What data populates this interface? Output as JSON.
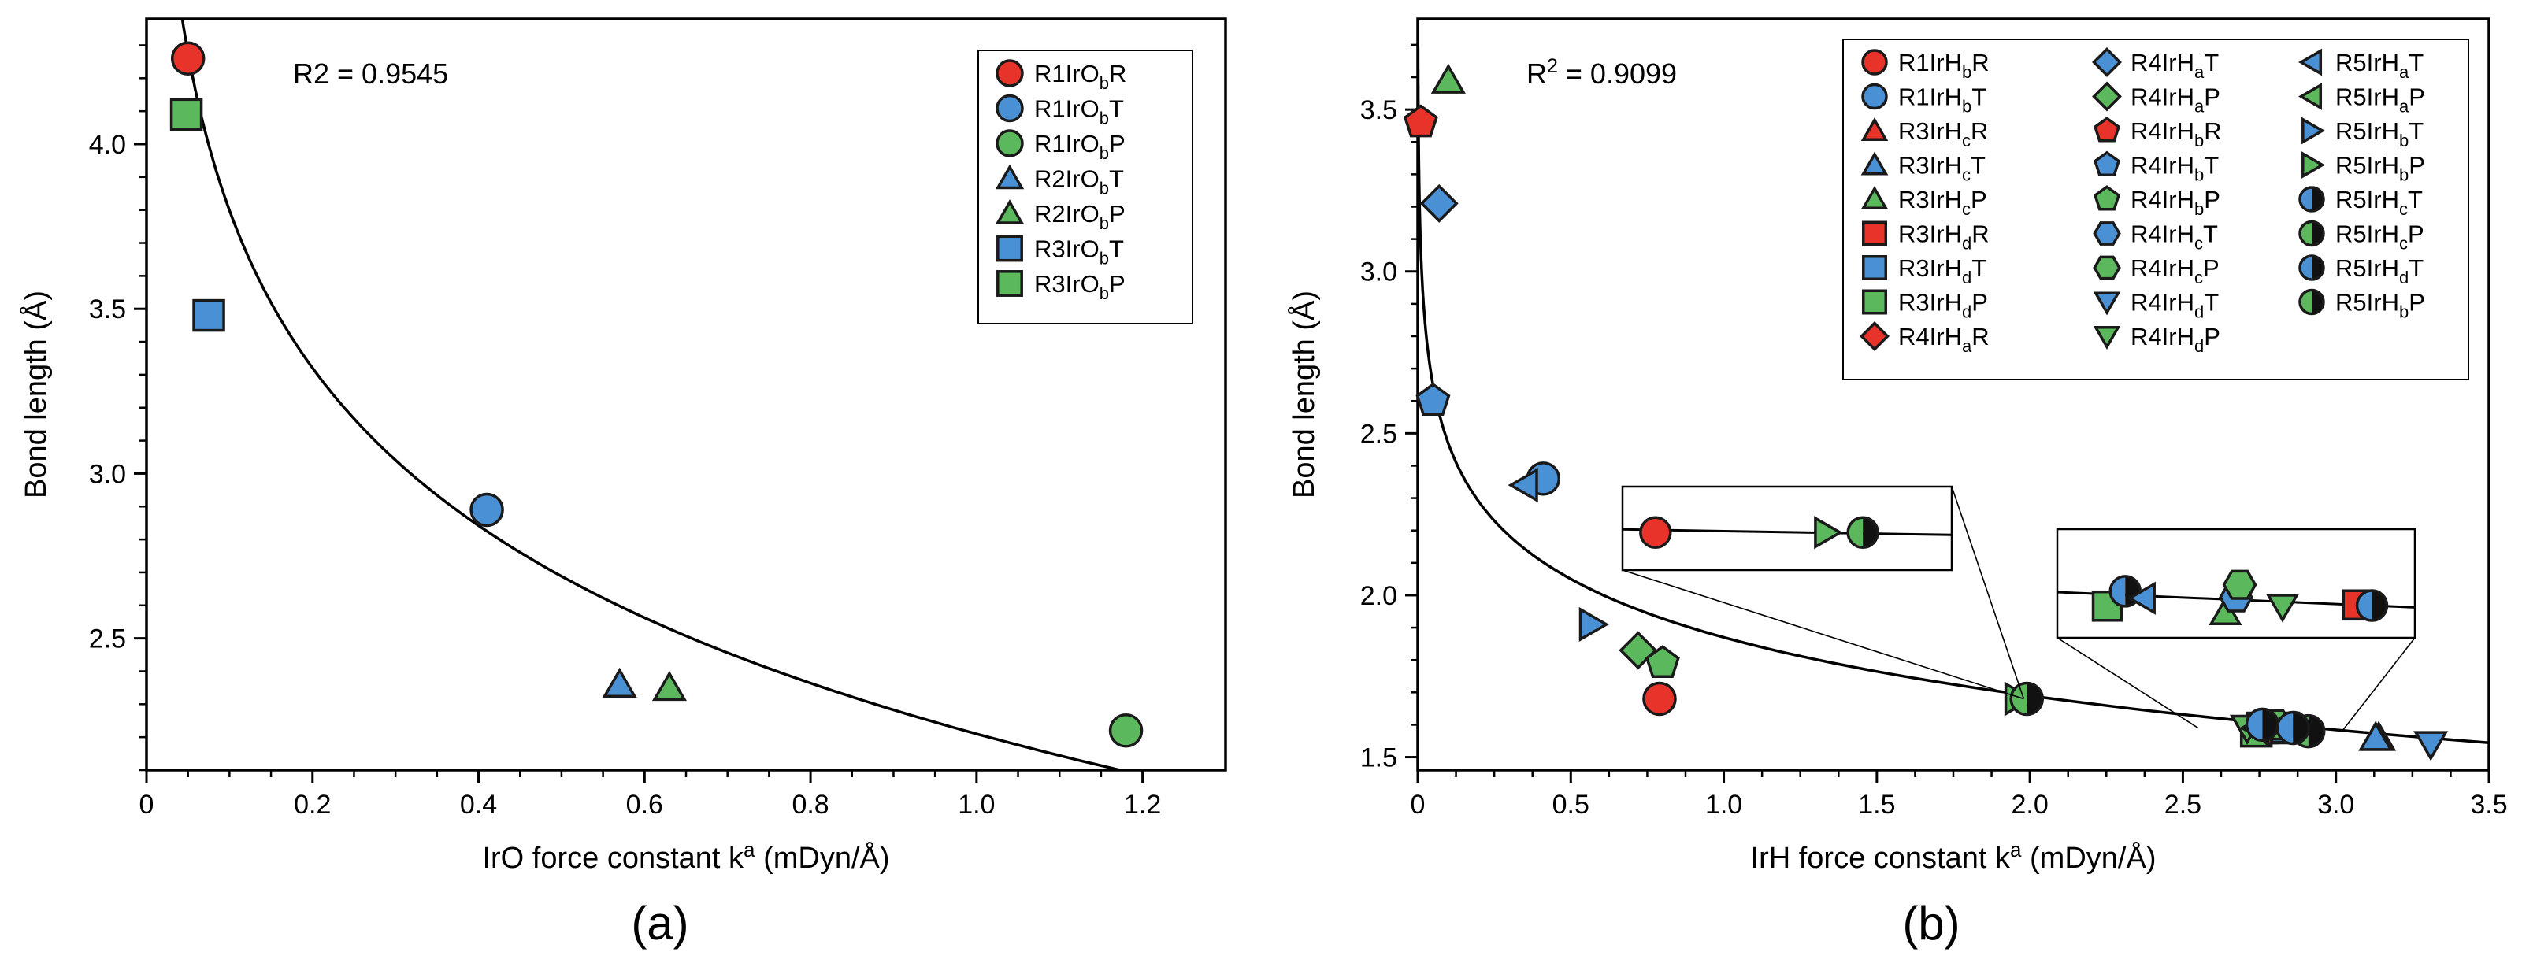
{
  "colors": {
    "red": "#e8332b",
    "blue": "#4a90d4",
    "green": "#5cb85c",
    "marker_stroke": "#1a1a1a"
  },
  "chart_data": [
    {
      "id": "a",
      "type": "scatter",
      "caption": "(a)",
      "xlabel": "IrO force constant k",
      "xlabel_sup": "a",
      "xlabel_units": " (mDyn/Å)",
      "ylabel": "Bond length (Å)",
      "annotation": {
        "prefix": "R2",
        "suffix": " = 0.9545"
      },
      "xlim": [
        0,
        1.3
      ],
      "ylim": [
        2.1,
        4.38
      ],
      "xticks": [
        {
          "v": 0,
          "label": "0"
        },
        {
          "v": 0.2,
          "label": "0.2"
        },
        {
          "v": 0.4,
          "label": "0.4"
        },
        {
          "v": 0.6,
          "label": "0.6"
        },
        {
          "v": 0.8,
          "label": "0.8"
        },
        {
          "v": 1.0,
          "label": "1.0"
        },
        {
          "v": 1.2,
          "label": "1.2"
        }
      ],
      "yticks": [
        {
          "v": 2.5,
          "label": "2.5"
        },
        {
          "v": 3.0,
          "label": "3.0"
        },
        {
          "v": 3.5,
          "label": "3.5"
        },
        {
          "v": 4.0,
          "label": "4.0"
        }
      ],
      "fit": {
        "model": "a + b*ln(x)",
        "a": 2.21,
        "b": -0.69
      },
      "legend": {
        "position": "top-right",
        "columns": 1
      },
      "series": [
        {
          "name": "R1IrO",
          "sub": "b",
          "suffix": "R",
          "marker": "circle",
          "color": "red",
          "x": 0.05,
          "y": 4.26
        },
        {
          "name": "R1IrO",
          "sub": "b",
          "suffix": "T",
          "marker": "circle",
          "color": "blue",
          "x": 0.41,
          "y": 2.89
        },
        {
          "name": "R1IrO",
          "sub": "b",
          "suffix": "P",
          "marker": "circle",
          "color": "green",
          "x": 1.18,
          "y": 2.22
        },
        {
          "name": "R2IrO",
          "sub": "b",
          "suffix": "T",
          "marker": "triangle",
          "color": "blue",
          "x": 0.57,
          "y": 2.36
        },
        {
          "name": "R2IrO",
          "sub": "b",
          "suffix": "P",
          "marker": "triangle",
          "color": "green",
          "x": 0.63,
          "y": 2.35
        },
        {
          "name": "R3IrO",
          "sub": "b",
          "suffix": "T",
          "marker": "square",
          "color": "blue",
          "x": 0.075,
          "y": 3.48
        },
        {
          "name": "R3IrO",
          "sub": "b",
          "suffix": "P",
          "marker": "square",
          "color": "green",
          "x": 0.048,
          "y": 4.09
        }
      ]
    },
    {
      "id": "b",
      "type": "scatter",
      "caption": "(b)",
      "xlabel": "IrH force constant k",
      "xlabel_sup": "a",
      "xlabel_units": " (mDyn/Å)",
      "ylabel": "Bond length (Å)",
      "annotation": {
        "prefix": "R",
        "sup": "2",
        "suffix": " = 0.9099"
      },
      "xlim": [
        0,
        3.5
      ],
      "ylim": [
        1.46,
        3.78
      ],
      "xticks": [
        {
          "v": 0,
          "label": "0"
        },
        {
          "v": 0.5,
          "label": "0.5"
        },
        {
          "v": 1.0,
          "label": "1.0"
        },
        {
          "v": 1.5,
          "label": "1.5"
        },
        {
          "v": 2.0,
          "label": "2.0"
        },
        {
          "v": 2.5,
          "label": "2.5"
        },
        {
          "v": 3.0,
          "label": "3.0"
        },
        {
          "v": 3.5,
          "label": "3.5"
        }
      ],
      "yticks": [
        {
          "v": 1.5,
          "label": "1.5"
        },
        {
          "v": 2.0,
          "label": "2.0"
        },
        {
          "v": 2.5,
          "label": "2.5"
        },
        {
          "v": 3.0,
          "label": "3.0"
        },
        {
          "v": 3.5,
          "label": "3.5"
        }
      ],
      "fit": {
        "model": "a + b*ln(x)",
        "a": 1.87,
        "b": -0.26
      },
      "legend": {
        "position": "top-right",
        "columns": 3
      },
      "series": [
        {
          "name": "R1IrH",
          "sub": "b",
          "suffix": "R",
          "marker": "circle",
          "color": "red",
          "x": 0.79,
          "y": 1.68
        },
        {
          "name": "R1IrH",
          "sub": "b",
          "suffix": "T",
          "marker": "circle",
          "color": "blue",
          "x": 0.41,
          "y": 2.36
        },
        {
          "name": "R3IrH",
          "sub": "c",
          "suffix": "R",
          "marker": "triangle",
          "color": "red",
          "x": 3.14,
          "y": 1.56
        },
        {
          "name": "R3IrH",
          "sub": "c",
          "suffix": "T",
          "marker": "triangle",
          "color": "blue",
          "x": 3.13,
          "y": 1.56
        },
        {
          "name": "R3IrH",
          "sub": "c",
          "suffix": "P",
          "marker": "triangle",
          "color": "green",
          "x": 0.1,
          "y": 3.59
        },
        {
          "name": "R3IrH",
          "sub": "d",
          "suffix": "R",
          "marker": "square",
          "color": "red",
          "x": 2.83,
          "y": 1.59
        },
        {
          "name": "R3IrH",
          "sub": "d",
          "suffix": "T",
          "marker": "square",
          "color": "blue",
          "x": 2.76,
          "y": 1.59
        },
        {
          "name": "R3IrH",
          "sub": "d",
          "suffix": "P",
          "marker": "square",
          "color": "green",
          "x": 2.74,
          "y": 1.58
        },
        {
          "name": "R4IrH",
          "sub": "a",
          "suffix": "R",
          "marker": "diamond",
          "color": "red",
          "x": 2.78,
          "y": 1.59
        },
        {
          "name": "R4IrH",
          "sub": "a",
          "suffix": "T",
          "marker": "diamond",
          "color": "blue",
          "x": 0.07,
          "y": 3.21
        },
        {
          "name": "R4IrH",
          "sub": "a",
          "suffix": "P",
          "marker": "diamond",
          "color": "green",
          "x": 0.72,
          "y": 1.83
        },
        {
          "name": "R4IrH",
          "sub": "b",
          "suffix": "R",
          "marker": "pentagon",
          "color": "red",
          "x": 0.01,
          "y": 3.46
        },
        {
          "name": "R4IrH",
          "sub": "b",
          "suffix": "T",
          "marker": "pentagon",
          "color": "blue",
          "x": 0.05,
          "y": 2.6
        },
        {
          "name": "R4IrH",
          "sub": "b",
          "suffix": "P",
          "marker": "pentagon",
          "color": "green",
          "x": 0.8,
          "y": 1.79
        },
        {
          "name": "R4IrH",
          "sub": "c",
          "suffix": "T",
          "marker": "hexagon",
          "color": "blue",
          "x": 2.82,
          "y": 1.59
        },
        {
          "name": "R4IrH",
          "sub": "c",
          "suffix": "P",
          "marker": "hexagon",
          "color": "green",
          "x": 2.8,
          "y": 1.6
        },
        {
          "name": "R4IrH",
          "sub": "d",
          "suffix": "T",
          "marker": "tri-down",
          "color": "blue",
          "x": 3.31,
          "y": 1.54
        },
        {
          "name": "R4IrH",
          "sub": "d",
          "suffix": "P",
          "marker": "tri-down",
          "color": "green",
          "x": 2.71,
          "y": 1.59
        },
        {
          "name": "R5IrH",
          "sub": "a",
          "suffix": "T",
          "marker": "tri-left",
          "color": "blue",
          "x": 0.35,
          "y": 2.34
        },
        {
          "name": "R5IrH",
          "sub": "a",
          "suffix": "P",
          "marker": "tri-left",
          "color": "green",
          "x": 2.74,
          "y": 1.59
        },
        {
          "name": "R5IrH",
          "sub": "b",
          "suffix": "T",
          "marker": "tri-right",
          "color": "blue",
          "x": 0.57,
          "y": 1.91
        },
        {
          "name": "R5IrH",
          "sub": "b",
          "suffix": "P",
          "marker": "tri-right",
          "color": "green",
          "x": 1.96,
          "y": 1.68
        },
        {
          "name": "R5IrH",
          "sub": "c",
          "suffix": "T",
          "marker": "half-circle",
          "color": "blue",
          "x": 2.76,
          "y": 1.6
        },
        {
          "name": "R5IrH",
          "sub": "c",
          "suffix": "P",
          "marker": "half-circle",
          "color": "green",
          "x": 2.91,
          "y": 1.58
        },
        {
          "name": "R5IrH",
          "sub": "d",
          "suffix": "T",
          "marker": "half-circle",
          "color": "blue",
          "x": 2.86,
          "y": 1.59
        },
        {
          "name": "R5IrH",
          "sub": "b",
          "suffix": "P",
          "marker": "half-circle",
          "color": "green",
          "x": 1.99,
          "y": 1.68
        }
      ],
      "insets": [
        {
          "id": "inset-left",
          "anchor": {
            "x": 1.98,
            "y": 1.68
          },
          "x_range": [
            0.9,
            1.55
          ],
          "points": [
            {
              "marker": "circle",
              "color": "red",
              "fx": 0.1
            },
            {
              "marker": "tri-right",
              "color": "green",
              "fx": 0.62
            },
            {
              "marker": "half-circle",
              "color": "green",
              "fx": 0.73
            }
          ]
        },
        {
          "id": "inset-right",
          "anchor_left": {
            "x": 2.55,
            "y": 1.59
          },
          "anchor_right": {
            "x": 3.02,
            "y": 1.58
          },
          "points": [
            {
              "marker": "square",
              "color": "green",
              "fx": 0.14,
              "dy": 0.25
            },
            {
              "marker": "half-circle",
              "color": "blue",
              "fx": 0.19,
              "dy": -0.08
            },
            {
              "marker": "tri-left",
              "color": "blue",
              "fx": 0.24,
              "dy": 0.05
            },
            {
              "marker": "triangle",
              "color": "green",
              "fx": 0.47,
              "dy": 0.28
            },
            {
              "marker": "hexagon",
              "color": "blue",
              "fx": 0.5,
              "dy": -0.05
            },
            {
              "marker": "hexagon",
              "color": "green",
              "fx": 0.51,
              "dy": -0.32
            },
            {
              "marker": "tri-down",
              "color": "green",
              "fx": 0.63,
              "dy": 0.1
            },
            {
              "marker": "square",
              "color": "red",
              "fx": 0.84,
              "dy": 0.0
            },
            {
              "marker": "half-circle",
              "color": "blue",
              "fx": 0.88,
              "dy": 0.0
            }
          ]
        }
      ]
    }
  ]
}
